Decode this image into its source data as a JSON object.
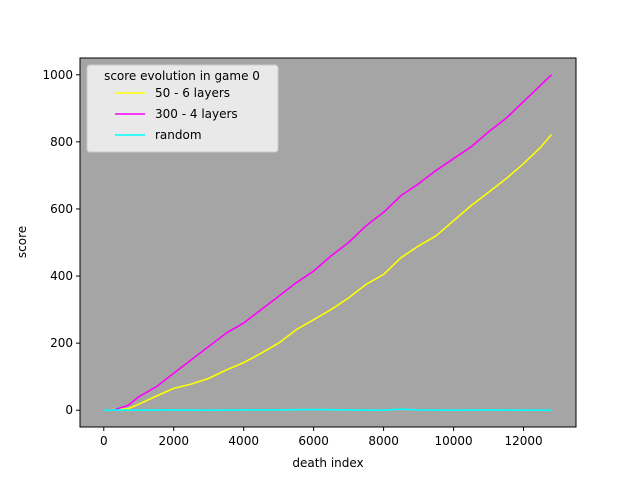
{
  "chart_data": {
    "type": "line",
    "xlabel": "death index",
    "ylabel": "score",
    "xlim": [
      -680,
      13500
    ],
    "ylim": [
      -50,
      1050
    ],
    "xticks": [
      0,
      2000,
      4000,
      6000,
      8000,
      10000,
      12000
    ],
    "yticks": [
      0,
      200,
      400,
      600,
      800,
      1000
    ],
    "grid": false,
    "plot_background": "#a5a5a5",
    "legend": {
      "title": "score evolution in game 0",
      "placement": "top-left"
    },
    "series": [
      {
        "name": "50 - 6 layers",
        "color": "#ffff00",
        "x": [
          0,
          300,
          700,
          1000,
          1500,
          2000,
          2500,
          3000,
          3500,
          4000,
          4500,
          5000,
          5500,
          6000,
          6500,
          7000,
          7500,
          8000,
          8500,
          9000,
          9500,
          10000,
          10500,
          11000,
          11500,
          12000,
          12500,
          12800
        ],
        "y": [
          0,
          2,
          5,
          18,
          42,
          65,
          78,
          95,
          120,
          142,
          170,
          200,
          240,
          270,
          300,
          335,
          375,
          405,
          455,
          490,
          520,
          565,
          610,
          650,
          690,
          735,
          785,
          822
        ]
      },
      {
        "name": "300 - 4 layers",
        "color": "#ff00ff",
        "x": [
          0,
          300,
          700,
          1000,
          1500,
          2000,
          2500,
          3000,
          3500,
          4000,
          4500,
          5000,
          5500,
          6000,
          6500,
          7000,
          7500,
          8000,
          8500,
          9000,
          9500,
          10000,
          10500,
          11000,
          11500,
          12000,
          12500,
          12800
        ],
        "y": [
          0,
          1,
          15,
          40,
          70,
          110,
          150,
          190,
          230,
          260,
          300,
          340,
          380,
          415,
          460,
          500,
          550,
          590,
          640,
          675,
          715,
          750,
          785,
          830,
          870,
          920,
          970,
          1000
        ]
      },
      {
        "name": "random",
        "color": "#00ffff",
        "x": [
          0,
          500,
          1000,
          2000,
          3000,
          4000,
          5000,
          6000,
          7000,
          8000,
          8500,
          9000,
          10000,
          11000,
          12000,
          12800
        ],
        "y": [
          0,
          1,
          0,
          1,
          0,
          1,
          1,
          2,
          1,
          0,
          3,
          1,
          0,
          1,
          0,
          0
        ]
      }
    ]
  }
}
